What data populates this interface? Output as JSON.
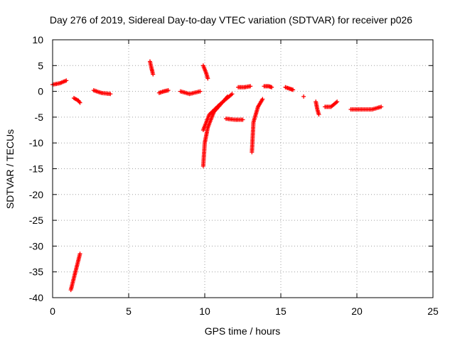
{
  "chart_data": {
    "type": "scatter",
    "title": "Day 276 of 2019, Sidereal Day-to-day VTEC variation (SDTVAR) for receiver p026",
    "xlabel": "GPS time / hours",
    "ylabel": "SDTVAR / TECUs",
    "xlim": [
      0,
      25
    ],
    "ylim": [
      -40,
      10
    ],
    "xticks": [
      0,
      5,
      10,
      15,
      20,
      25
    ],
    "yticks": [
      10,
      5,
      0,
      -5,
      -10,
      -15,
      -20,
      -25,
      -30,
      -35,
      -40
    ],
    "grid": true,
    "marker": "+",
    "color": "#ff0000",
    "segments": [
      [
        [
          0.0,
          1.3
        ],
        [
          0.5,
          1.6
        ],
        [
          0.9,
          2.1
        ]
      ],
      [
        [
          1.2,
          -38.5
        ],
        [
          1.5,
          -35.0
        ],
        [
          1.8,
          -31.5
        ]
      ],
      [
        [
          1.4,
          -1.3
        ],
        [
          1.7,
          -1.8
        ],
        [
          1.8,
          -2.2
        ]
      ],
      [
        [
          2.7,
          0.2
        ],
        [
          3.2,
          -0.3
        ],
        [
          3.8,
          -0.5
        ]
      ],
      [
        [
          6.4,
          5.8
        ],
        [
          6.5,
          4.5
        ],
        [
          6.6,
          3.3
        ]
      ],
      [
        [
          7.0,
          -0.3
        ],
        [
          7.3,
          0.0
        ],
        [
          7.6,
          0.2
        ]
      ],
      [
        [
          8.4,
          0.0
        ],
        [
          9.0,
          -0.5
        ],
        [
          9.7,
          0.0
        ]
      ],
      [
        [
          9.9,
          5.0
        ],
        [
          10.1,
          3.5
        ],
        [
          10.2,
          2.5
        ]
      ],
      [
        [
          9.9,
          -14.5
        ],
        [
          10.0,
          -10.0
        ],
        [
          10.2,
          -7.0
        ],
        [
          10.6,
          -4.0
        ],
        [
          11.2,
          -2.0
        ],
        [
          11.5,
          -1.0
        ]
      ],
      [
        [
          9.9,
          -7.5
        ],
        [
          10.3,
          -4.5
        ],
        [
          11.0,
          -2.5
        ],
        [
          11.8,
          -0.5
        ]
      ],
      [
        [
          11.4,
          -5.3
        ],
        [
          12.0,
          -5.5
        ],
        [
          12.5,
          -5.5
        ]
      ],
      [
        [
          12.2,
          0.8
        ],
        [
          12.6,
          0.8
        ],
        [
          13.0,
          1.0
        ]
      ],
      [
        [
          13.1,
          -11.8
        ],
        [
          13.2,
          -6.0
        ],
        [
          13.5,
          -3.0
        ],
        [
          13.8,
          -1.5
        ]
      ],
      [
        [
          13.9,
          1.0
        ],
        [
          14.2,
          1.0
        ],
        [
          14.4,
          0.8
        ]
      ],
      [
        [
          15.3,
          0.8
        ],
        [
          15.6,
          0.5
        ],
        [
          15.8,
          0.3
        ]
      ],
      [
        [
          16.5,
          -1.0
        ]
      ],
      [
        [
          17.3,
          -2.0
        ],
        [
          17.4,
          -3.5
        ],
        [
          17.5,
          -4.5
        ]
      ],
      [
        [
          17.9,
          -3.0
        ],
        [
          18.3,
          -3.0
        ],
        [
          18.7,
          -2.0
        ]
      ],
      [
        [
          19.6,
          -3.5
        ],
        [
          20.3,
          -3.5
        ],
        [
          21.0,
          -3.5
        ],
        [
          21.6,
          -3.0
        ]
      ]
    ]
  }
}
